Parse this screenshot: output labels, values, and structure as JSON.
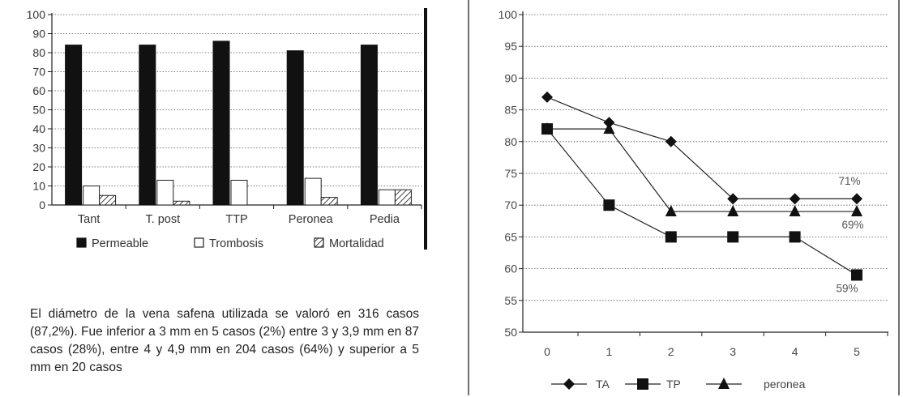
{
  "chart_data": [
    {
      "type": "bar",
      "categories": [
        "Tant",
        "T. post",
        "TTP",
        "Peronea",
        "Pedia"
      ],
      "series": [
        {
          "name": "Permeable",
          "values": [
            84,
            84,
            86,
            81,
            84
          ]
        },
        {
          "name": "Trombosis",
          "values": [
            10,
            13,
            13,
            14,
            8
          ]
        },
        {
          "name": "Mortalidad",
          "values": [
            5,
            2,
            0,
            4,
            8
          ]
        }
      ],
      "ylim": [
        0,
        100
      ],
      "yticks": [
        "0",
        "10",
        "20",
        "30",
        "40",
        "50",
        "60",
        "70",
        "80",
        "90",
        "100"
      ],
      "grid": true,
      "legend": "bottom"
    },
    {
      "type": "line",
      "x": [
        0,
        1,
        2,
        3,
        4,
        5
      ],
      "xticks": [
        "0",
        "1",
        "2",
        "3",
        "4",
        "5"
      ],
      "series": [
        {
          "name": "TA",
          "values": [
            87,
            83,
            80,
            71,
            71,
            71
          ],
          "marker": "diamond"
        },
        {
          "name": "TP",
          "values": [
            82,
            70,
            65,
            65,
            65,
            59
          ],
          "marker": "square"
        },
        {
          "name": "peronea",
          "values": [
            82,
            82,
            69,
            69,
            69,
            69
          ],
          "marker": "triangle"
        }
      ],
      "ylim": [
        50,
        100
      ],
      "yticks": [
        "50",
        "55",
        "60",
        "65",
        "70",
        "75",
        "80",
        "85",
        "90",
        "95",
        "100"
      ],
      "annotations": [
        "71%",
        "69%",
        "59%"
      ],
      "grid": true,
      "legend": "bottom"
    }
  ],
  "paragraph": "El diámetro de la vena safena utilizada se valoró en 316 casos (87,2%). Fue inferior a 3 mm en 5 casos (2%) entre 3 y 3,9 mm en 87 casos (28%), entre 4 y 4,9 mm en 204 casos (64%) y superior a 5 mm en 20 casos"
}
